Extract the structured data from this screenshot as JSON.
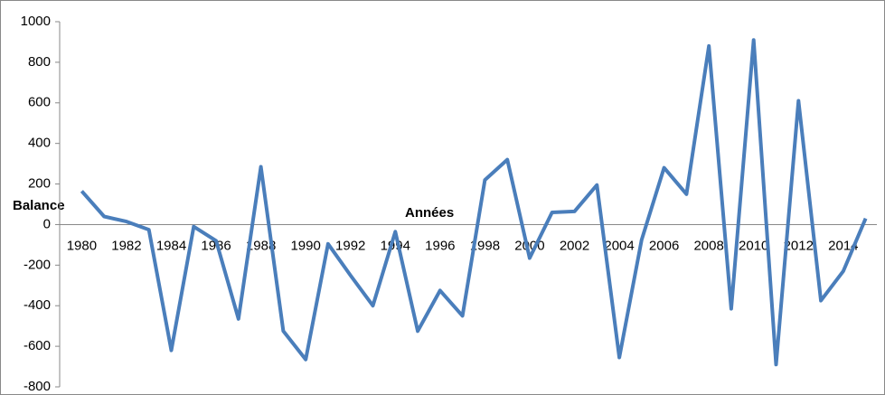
{
  "chart_data": {
    "type": "line",
    "y_label": "Balance",
    "x_label": "Années",
    "categories": [
      "1980",
      null,
      "1982",
      null,
      "1984",
      null,
      "1986",
      null,
      "1988",
      null,
      "1990",
      null,
      "1992",
      null,
      "1994",
      null,
      "1996",
      null,
      "1998",
      null,
      "2000",
      null,
      "2002",
      null,
      "2004",
      null,
      "2006",
      null,
      "2008",
      null,
      "2010",
      null,
      "2012",
      null,
      "2014",
      null
    ],
    "series": [
      {
        "color": "#4a7ebb",
        "values": [
          165,
          40,
          15,
          -25,
          -620,
          -10,
          -80,
          -465,
          285,
          -525,
          -665,
          -95,
          -250,
          -400,
          -35,
          -525,
          -325,
          -450,
          220,
          320,
          -165,
          60,
          65,
          195,
          -655,
          -75,
          280,
          150,
          880,
          -415,
          910,
          -690,
          610,
          -375,
          -230,
          30
        ]
      }
    ],
    "ylim": [
      -800,
      1000
    ],
    "yticks": [
      -800,
      -600,
      -400,
      -200,
      0,
      200,
      400,
      600,
      800,
      1000
    ]
  }
}
